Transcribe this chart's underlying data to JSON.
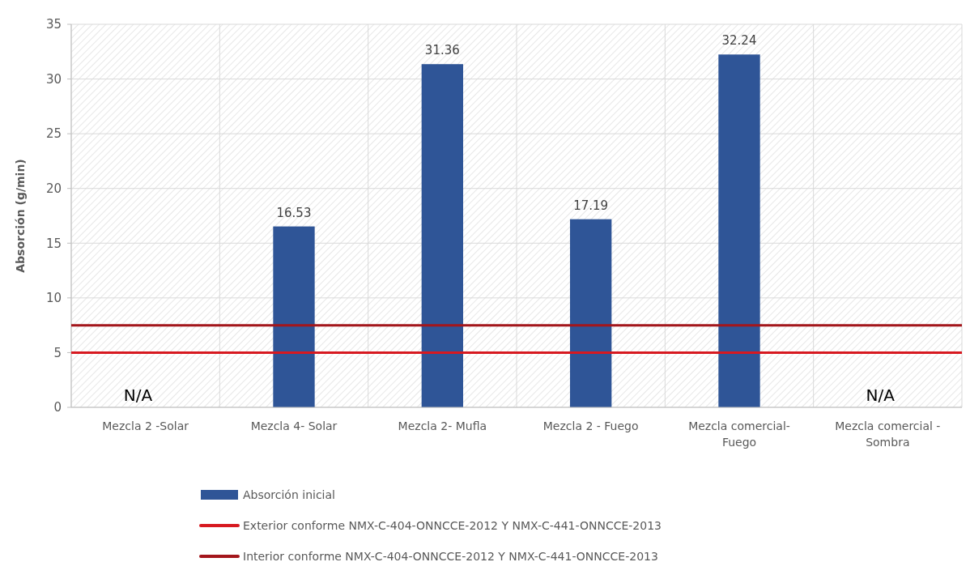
{
  "chart_data": {
    "type": "bar",
    "ylabel": "Absorción (g/min)",
    "categories": [
      "Mezcla 2 -Solar",
      "Mezcla 4- Solar",
      "Mezcla 2- Mufla",
      "Mezcla 2 - Fuego",
      "Mezcla comercial- Fuego",
      "Mezcla comercial - Sombra"
    ],
    "series": [
      {
        "name": "Absorción inicial",
        "color": "#2f5597",
        "values": [
          null,
          16.53,
          31.36,
          17.19,
          32.24,
          null
        ],
        "value_labels": [
          "N/A",
          "16.53",
          "31.36",
          "17.19",
          "32.24",
          "N/A"
        ]
      }
    ],
    "ref_lines": [
      {
        "axis": "y",
        "value": 5,
        "label": "Exterior conforme NMX-C-404-ONNCCE-2012  Y  NMX-C-441-ONNCCE-2013",
        "color": "#d71920"
      },
      {
        "axis": "y",
        "value": 7.5,
        "label": "Interior conforme  NMX-C-404-ONNCCE-2012  Y  NMX-C-441-ONNCCE-2013",
        "color": "#a3161b"
      }
    ],
    "ylim": [
      0,
      35
    ],
    "yticks": [
      0,
      5,
      10,
      15,
      20,
      25,
      30,
      35
    ],
    "grid": true,
    "legend": "bottom"
  }
}
